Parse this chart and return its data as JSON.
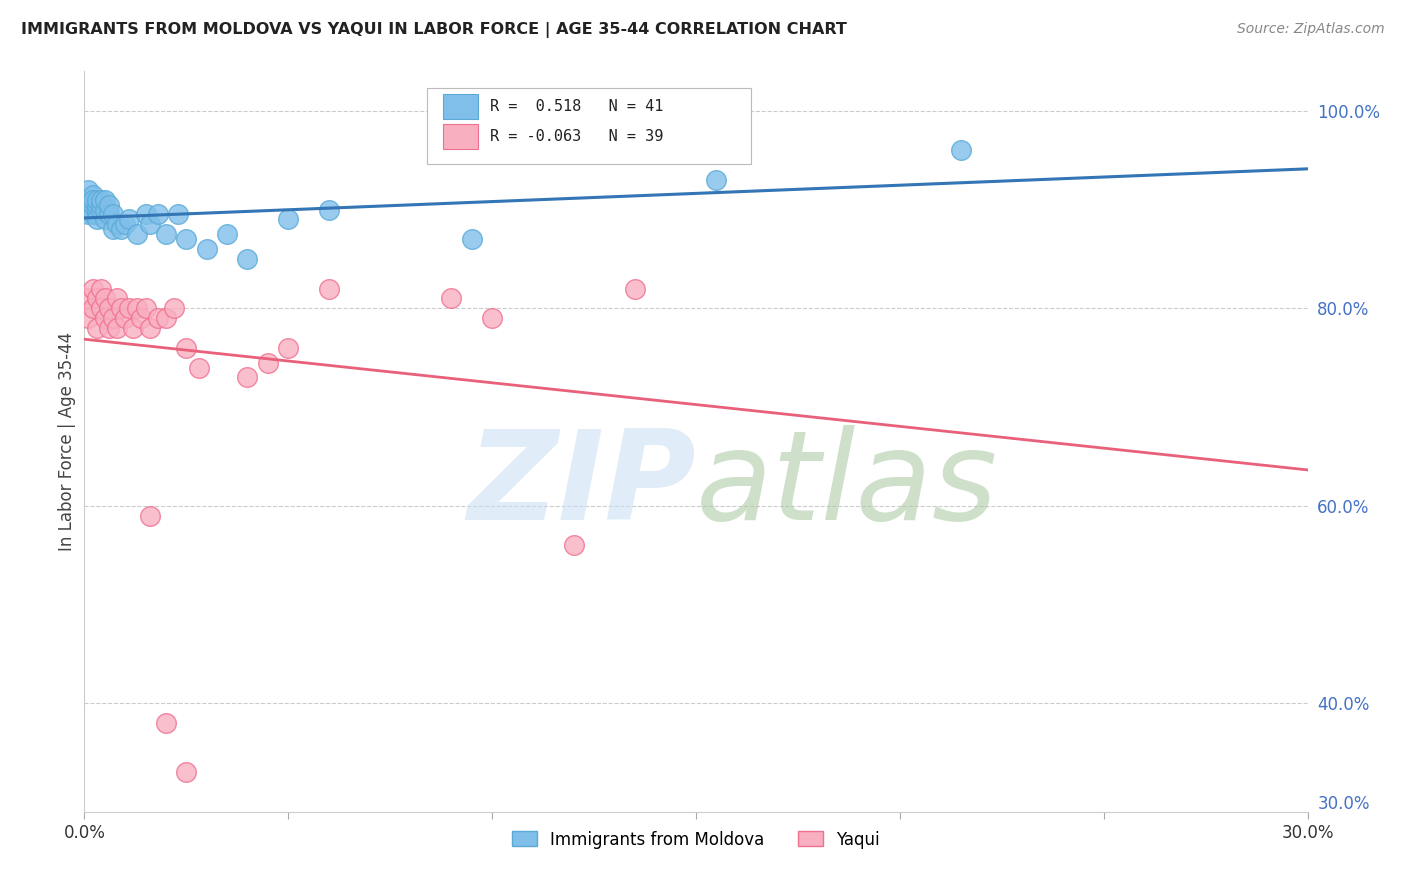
{
  "title": "IMMIGRANTS FROM MOLDOVA VS YAQUI IN LABOR FORCE | AGE 35-44 CORRELATION CHART",
  "source": "Source: ZipAtlas.com",
  "ylabel": "In Labor Force | Age 35-44",
  "xlim": [
    0.0,
    0.3
  ],
  "ylim": [
    0.29,
    1.04
  ],
  "xticks": [
    0.0,
    0.05,
    0.1,
    0.15,
    0.2,
    0.25,
    0.3
  ],
  "moldova_color": "#7fbfea",
  "moldova_edge": "#5aaad8",
  "yaqui_color": "#f8afc0",
  "yaqui_edge": "#f07090",
  "moldova_line_color": "#3375b5",
  "yaqui_line_color": "#e8607a",
  "watermark_zip": "ZIP",
  "watermark_atlas": "atlas",
  "watermark_color_zip": "#c8dff5",
  "watermark_color_atlas": "#a8c8a0",
  "background_color": "#ffffff",
  "grid_color": "#cccccc",
  "right_axis_color": "#4472c4",
  "title_color": "#222222",
  "source_color": "#888888",
  "legend_r1_r": "0.518",
  "legend_r1_n": "41",
  "legend_r2_r": "-0.063",
  "legend_r2_n": "39",
  "moldova_x": [
    0.001,
    0.001,
    0.001,
    0.002,
    0.002,
    0.002,
    0.002,
    0.003,
    0.003,
    0.003,
    0.003,
    0.003,
    0.004,
    0.004,
    0.004,
    0.005,
    0.005,
    0.005,
    0.006,
    0.006,
    0.007,
    0.007,
    0.008,
    0.009,
    0.01,
    0.011,
    0.013,
    0.015,
    0.016,
    0.018,
    0.02,
    0.023,
    0.025,
    0.03,
    0.035,
    0.04,
    0.05,
    0.06,
    0.095,
    0.155,
    0.215
  ],
  "moldova_y": [
    0.895,
    0.91,
    0.92,
    0.895,
    0.905,
    0.915,
    0.91,
    0.895,
    0.9,
    0.905,
    0.91,
    0.89,
    0.9,
    0.905,
    0.91,
    0.89,
    0.9,
    0.91,
    0.895,
    0.905,
    0.88,
    0.895,
    0.885,
    0.88,
    0.885,
    0.89,
    0.875,
    0.895,
    0.885,
    0.895,
    0.875,
    0.895,
    0.87,
    0.86,
    0.875,
    0.85,
    0.89,
    0.9,
    0.87,
    0.93,
    0.96
  ],
  "yaqui_x": [
    0.001,
    0.001,
    0.002,
    0.002,
    0.003,
    0.003,
    0.004,
    0.004,
    0.005,
    0.005,
    0.006,
    0.006,
    0.007,
    0.008,
    0.008,
    0.009,
    0.01,
    0.011,
    0.012,
    0.013,
    0.014,
    0.015,
    0.016,
    0.018,
    0.02,
    0.022,
    0.025,
    0.028,
    0.06,
    0.09,
    0.1,
    0.12,
    0.135,
    0.04,
    0.045,
    0.05,
    0.016,
    0.02,
    0.025
  ],
  "yaqui_y": [
    0.81,
    0.79,
    0.8,
    0.82,
    0.81,
    0.78,
    0.82,
    0.8,
    0.81,
    0.79,
    0.8,
    0.78,
    0.79,
    0.81,
    0.78,
    0.8,
    0.79,
    0.8,
    0.78,
    0.8,
    0.79,
    0.8,
    0.78,
    0.79,
    0.79,
    0.8,
    0.76,
    0.74,
    0.82,
    0.81,
    0.79,
    0.56,
    0.82,
    0.73,
    0.745,
    0.76,
    0.59,
    0.38,
    0.33
  ]
}
